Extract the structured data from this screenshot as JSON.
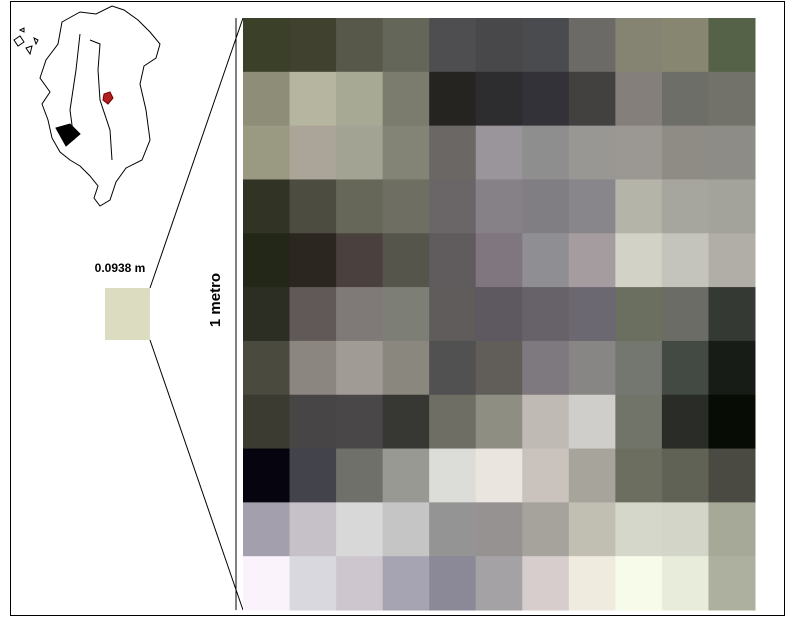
{
  "scale_label": "0.0938 m",
  "side_label": "1 metro"
}
